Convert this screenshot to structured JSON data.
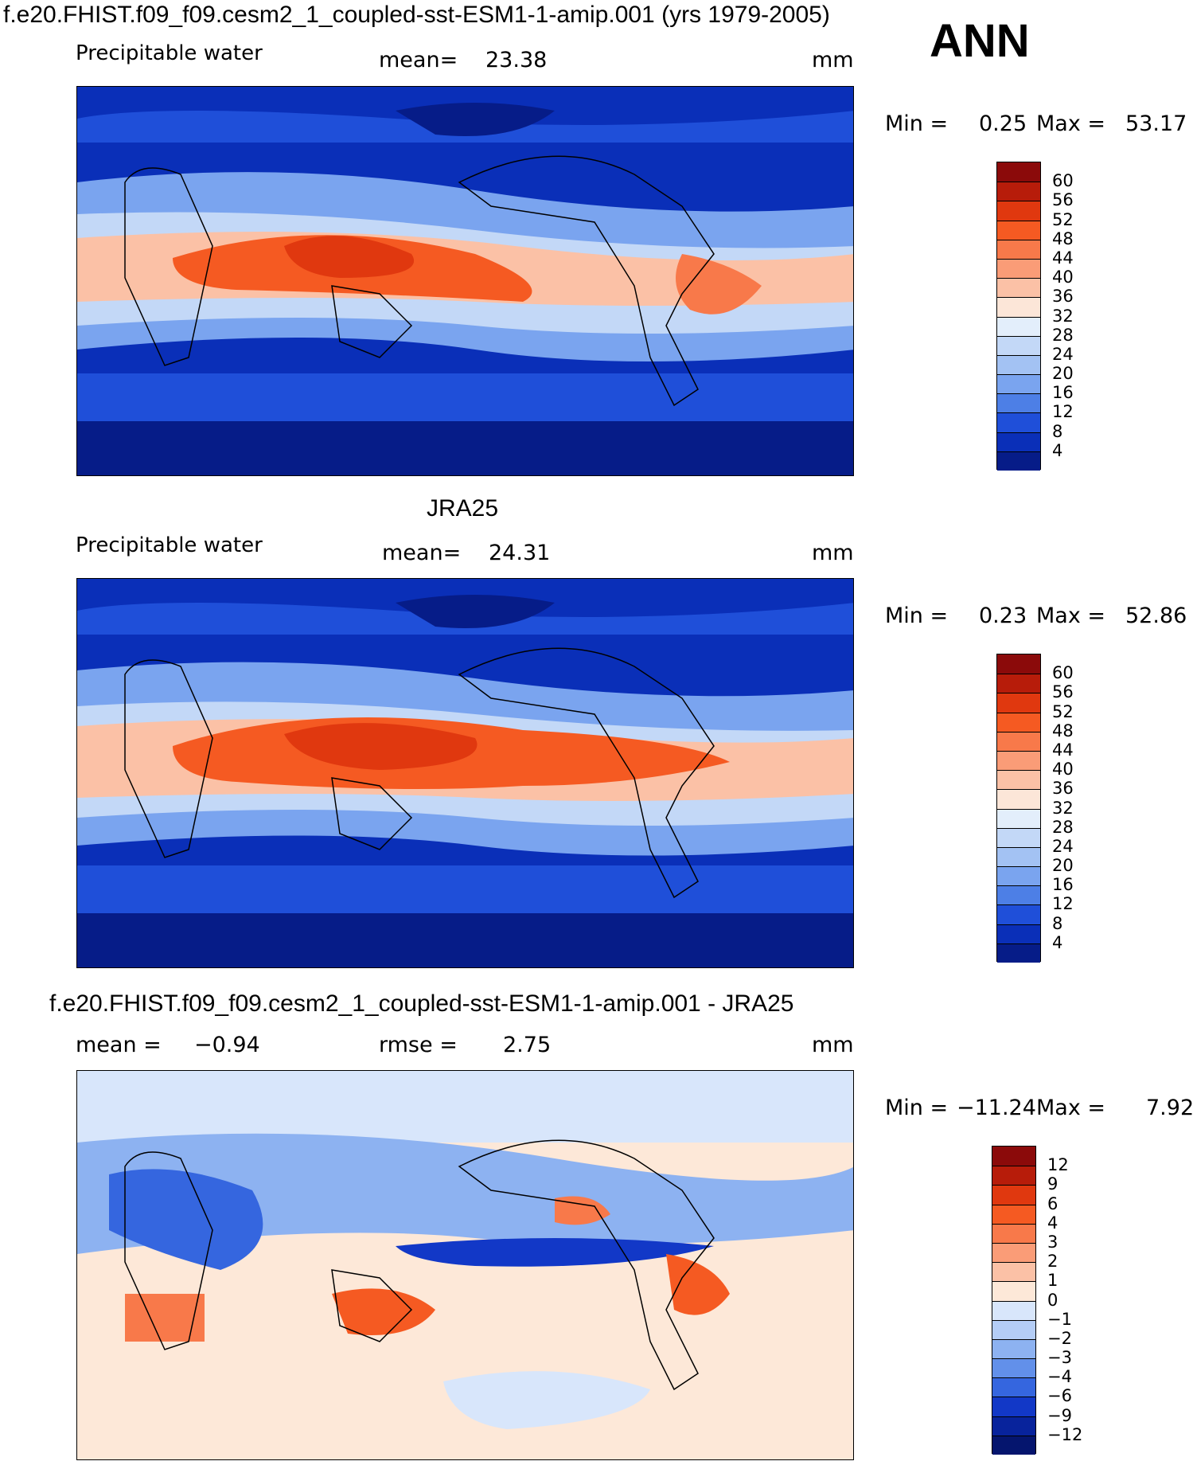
{
  "header": {
    "title": "f.e20.FHIST.f09_f09.cesm2_1_coupled-sst-ESM1-1-amip.001 (yrs 1979-2005)",
    "season": "ANN"
  },
  "panels": [
    {
      "id": "model",
      "title": "",
      "variable": "Precipitable water",
      "stat1_label": "mean=",
      "stat1_value": "23.38",
      "stat2_label": "",
      "stat2_value": "",
      "units": "mm",
      "min_label": "Min =",
      "min_value": "0.25",
      "max_label": "Max =",
      "max_value": "53.17",
      "colorbar": {
        "ticks": [
          "60",
          "56",
          "52",
          "48",
          "44",
          "40",
          "36",
          "32",
          "28",
          "24",
          "20",
          "16",
          "12",
          "8",
          "4"
        ],
        "colors": [
          "#8b0a0a",
          "#b71c0a",
          "#e0380f",
          "#f55a22",
          "#f8794a",
          "#fa9c77",
          "#fbc1a6",
          "#fce6d8",
          "#e3eefb",
          "#c3d8f7",
          "#a3c2f3",
          "#7aa4ef",
          "#4d7fe6",
          "#1f4fd9",
          "#0a2fb8",
          "#061c88"
        ]
      }
    },
    {
      "id": "obs",
      "title": "JRA25",
      "variable": "Precipitable water",
      "stat1_label": "mean=",
      "stat1_value": "24.31",
      "stat2_label": "",
      "stat2_value": "",
      "units": "mm",
      "min_label": "Min =",
      "min_value": "0.23",
      "max_label": "Max =",
      "max_value": "52.86",
      "colorbar": {
        "ticks": [
          "60",
          "56",
          "52",
          "48",
          "44",
          "40",
          "36",
          "32",
          "28",
          "24",
          "20",
          "16",
          "12",
          "8",
          "4"
        ],
        "colors": [
          "#8b0a0a",
          "#b71c0a",
          "#e0380f",
          "#f55a22",
          "#f8794a",
          "#fa9c77",
          "#fbc1a6",
          "#fce6d8",
          "#e3eefb",
          "#c3d8f7",
          "#a3c2f3",
          "#7aa4ef",
          "#4d7fe6",
          "#1f4fd9",
          "#0a2fb8",
          "#061c88"
        ]
      }
    },
    {
      "id": "diff",
      "title": "f.e20.FHIST.f09_f09.cesm2_1_coupled-sst-ESM1-1-amip.001 - JRA25",
      "variable": "",
      "stat1_label": "mean =",
      "stat1_value": "−0.94",
      "stat2_label": "rmse =",
      "stat2_value": "2.75",
      "units": "mm",
      "min_label": "Min =",
      "min_value": "−11.24",
      "max_label": "Max =",
      "max_value": "7.92",
      "colorbar": {
        "ticks": [
          "12",
          "9",
          "6",
          "4",
          "3",
          "2",
          "1",
          "0",
          "−1",
          "−2",
          "−3",
          "−4",
          "−6",
          "−9",
          "−12"
        ],
        "colors": [
          "#8b0a0a",
          "#b71c0a",
          "#e0380f",
          "#f55a22",
          "#f8794a",
          "#fa9c77",
          "#fbc1a6",
          "#fde8d8",
          "#d8e6fb",
          "#b4cdf6",
          "#8db2f1",
          "#6290ea",
          "#3566df",
          "#1238c7",
          "#08239c",
          "#05156e"
        ]
      }
    }
  ]
}
